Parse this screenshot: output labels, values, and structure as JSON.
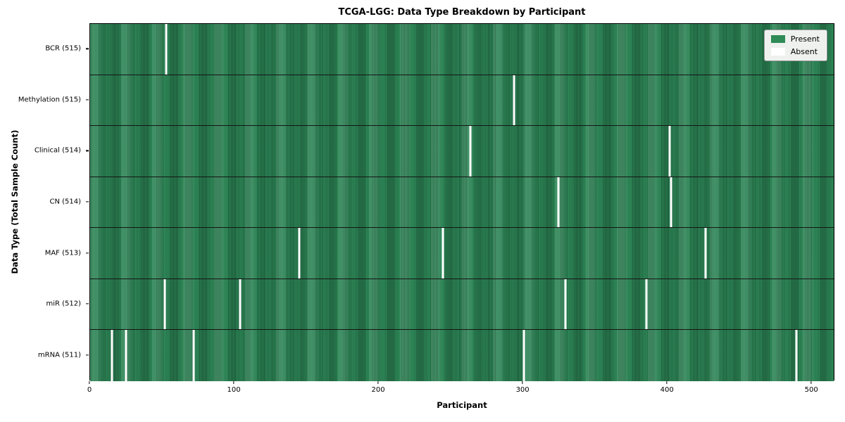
{
  "chart_data": {
    "type": "heatmap",
    "title": "TCGA-LGG: Data Type Breakdown by Participant",
    "xlabel": "Participant",
    "ylabel": "Data Type (Total Sample Count)",
    "x_range": [
      0,
      516
    ],
    "x_ticks": [
      0,
      100,
      200,
      300,
      400,
      500
    ],
    "total_participants": 516,
    "grid": false,
    "legend": {
      "position": "upper right",
      "entries": [
        {
          "name": "present",
          "label": "Present",
          "color": "#2e8b57"
        },
        {
          "name": "absent",
          "label": "Absent",
          "color": "#ffffff"
        }
      ]
    },
    "rows": [
      {
        "label": "BCR (515)",
        "data_type": "BCR",
        "present_count": 515,
        "absent_participants": [
          53
        ]
      },
      {
        "label": "Methylation (515)",
        "data_type": "Methylation",
        "present_count": 515,
        "absent_participants": [
          294
        ]
      },
      {
        "label": "Clinical (514)",
        "data_type": "Clinical",
        "present_count": 514,
        "absent_participants": [
          264,
          402
        ]
      },
      {
        "label": "CN (514)",
        "data_type": "CN",
        "present_count": 514,
        "absent_participants": [
          325,
          403
        ]
      },
      {
        "label": "MAF (513)",
        "data_type": "MAF",
        "present_count": 513,
        "absent_participants": [
          145,
          245,
          427
        ]
      },
      {
        "label": "miR (512)",
        "data_type": "miR",
        "present_count": 512,
        "absent_participants": [
          52,
          104,
          330,
          386
        ]
      },
      {
        "label": "mRNA (511)",
        "data_type": "mRNA",
        "present_count": 511,
        "absent_participants": [
          15,
          25,
          72,
          301,
          490
        ]
      }
    ],
    "colors": {
      "present": "#2e8b57",
      "present_edge": "#1d5c3a",
      "absent": "#ffffff",
      "row_separator": "#151515",
      "plot_border": "#000000",
      "legend_bg": "#eef1ee"
    }
  }
}
